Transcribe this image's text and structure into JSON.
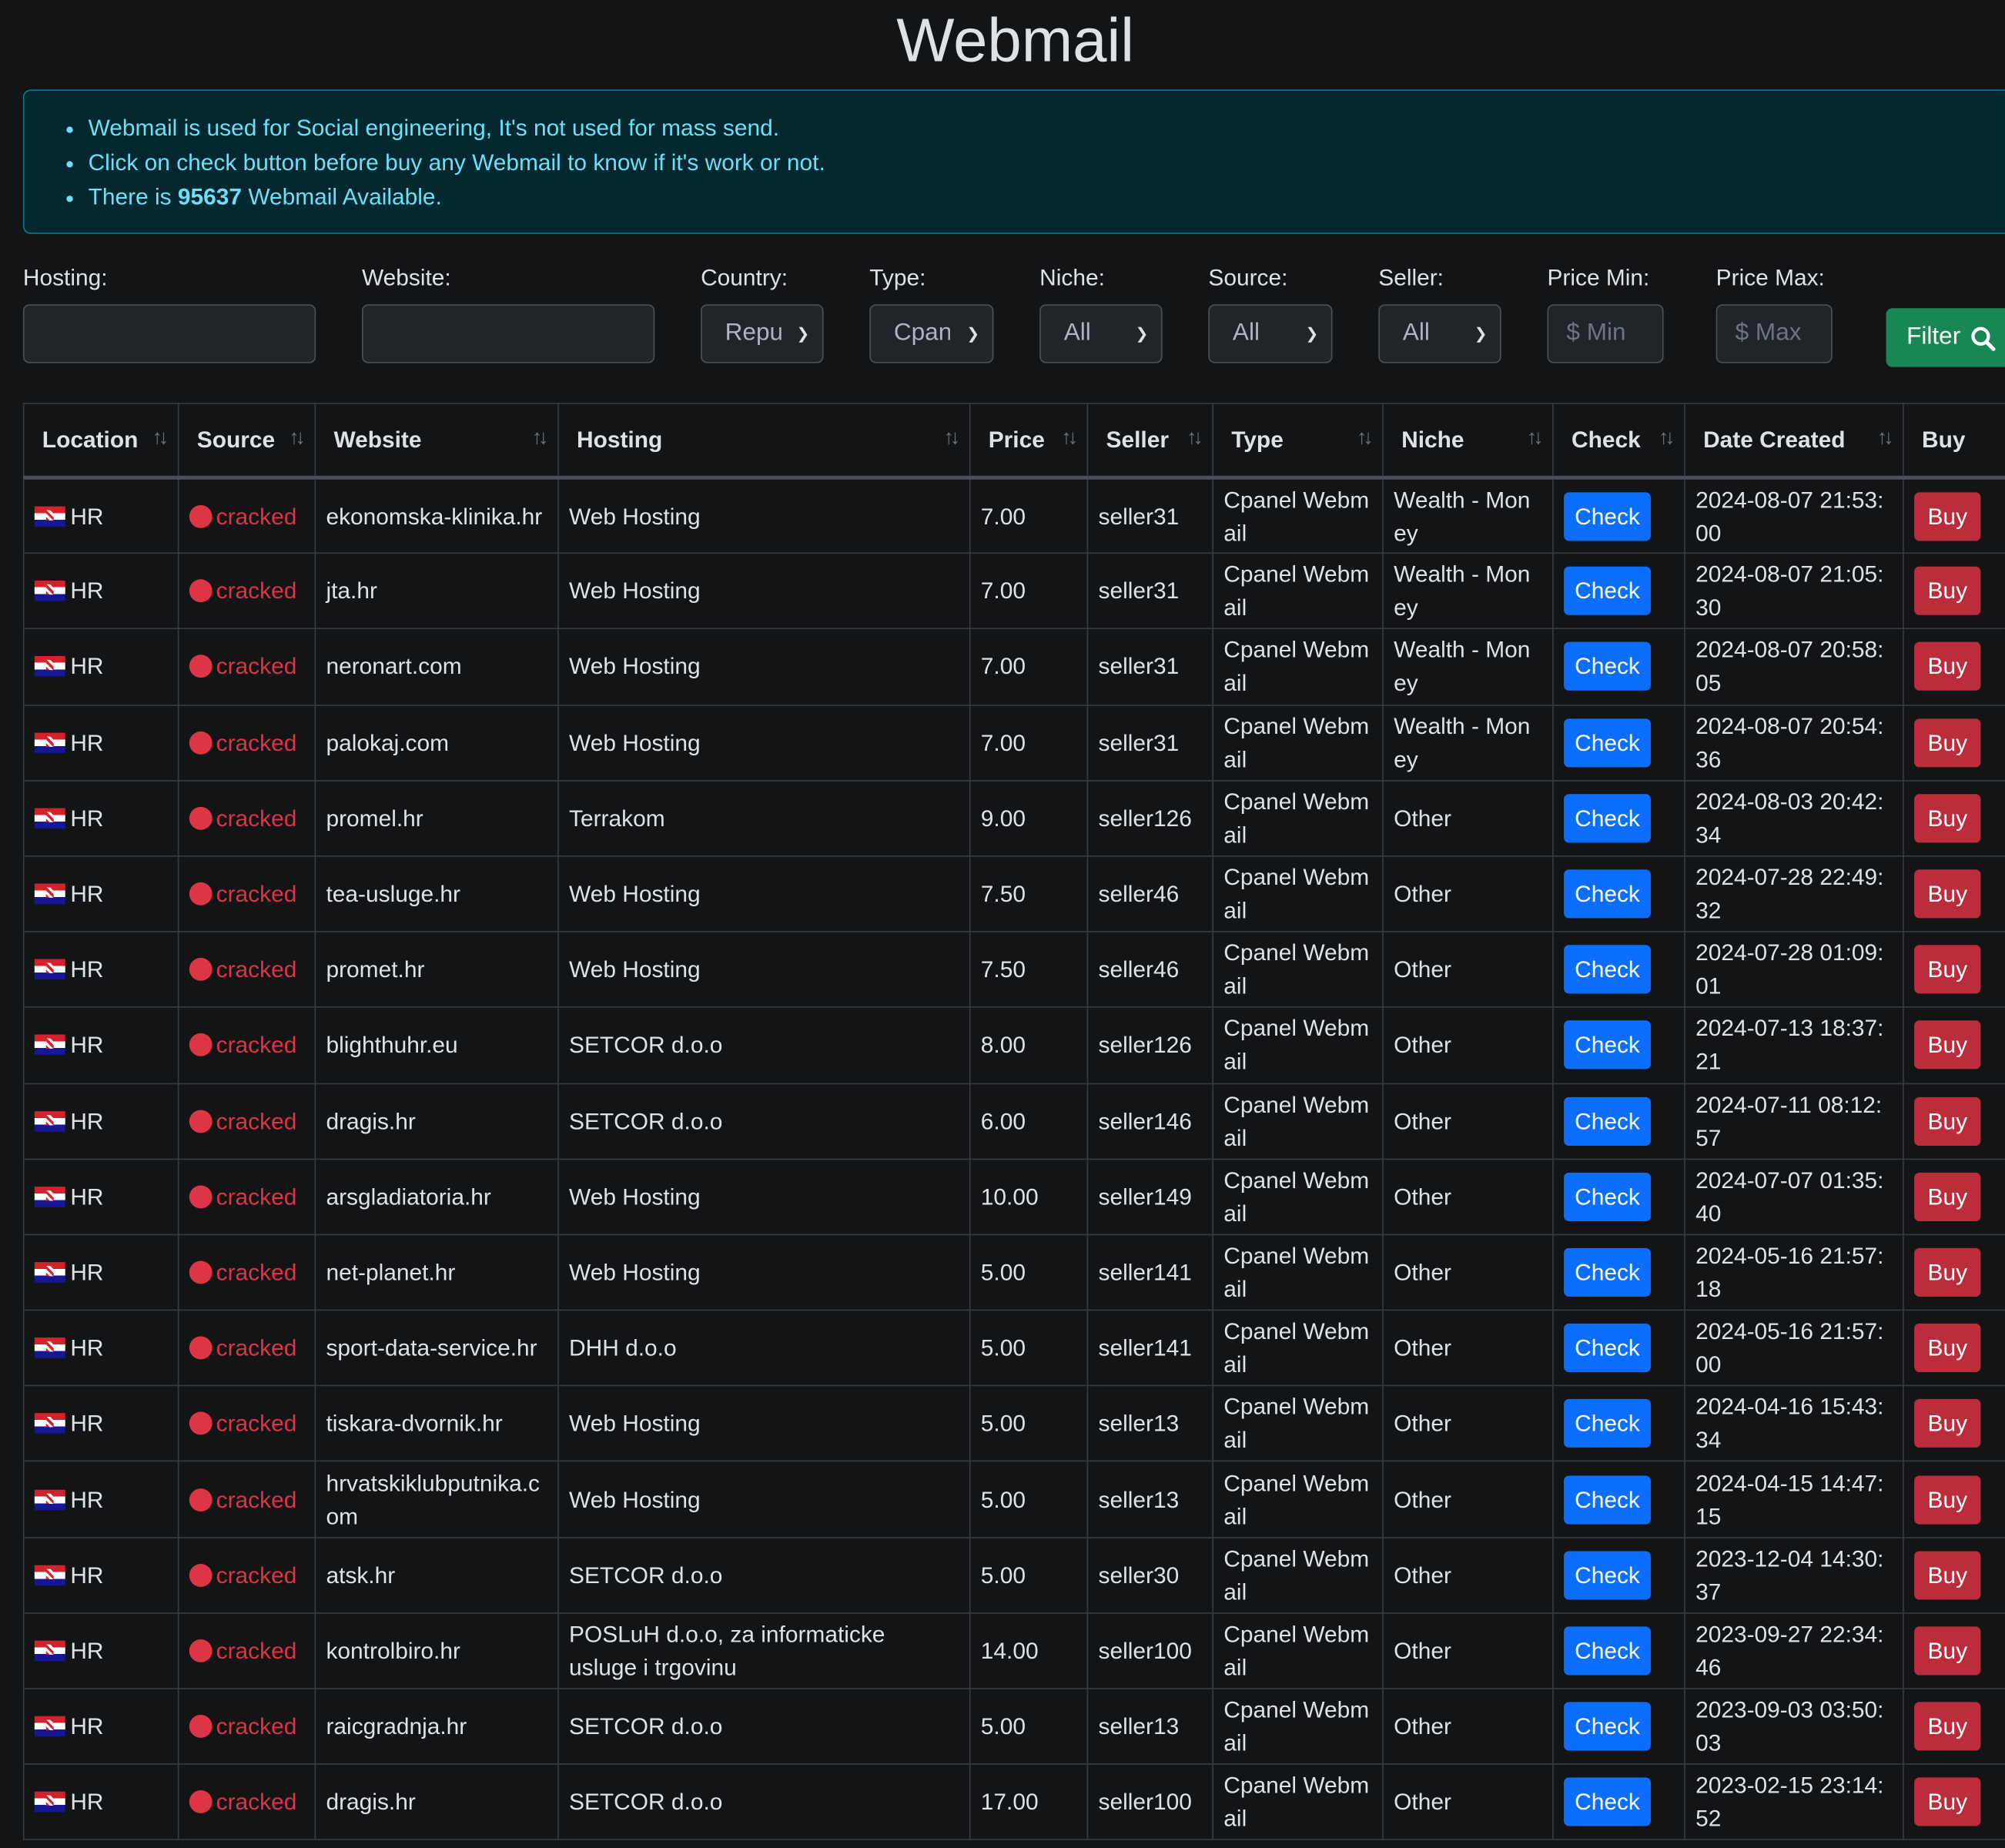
{
  "page": {
    "title": "Webmail"
  },
  "alert": {
    "line1": "Webmail is used for Social engineering, It's not used for mass send.",
    "line2": "Click on check button before buy any Webmail to know if it's work or not.",
    "line3_pre": "There is ",
    "count": "95637",
    "line3_post": " Webmail Available."
  },
  "filters": {
    "hosting_label": "Hosting:",
    "website_label": "Website:",
    "country_label": "Country:",
    "country_value": "Repu",
    "type_label": "Type:",
    "type_value": "Cpan",
    "niche_label": "Niche:",
    "niche_value": "All",
    "source_label": "Source:",
    "source_value": "All",
    "seller_label": "Seller:",
    "seller_value": "All",
    "price_min_label": "Price Min:",
    "price_min_placeholder": "$ Min",
    "price_max_label": "Price Max:",
    "price_max_placeholder": "$ Max",
    "filter_button": "Filter"
  },
  "table": {
    "columns": [
      "Location",
      "Source",
      "Website",
      "Hosting",
      "Price",
      "Seller",
      "Type",
      "Niche",
      "Check",
      "Date Created",
      "Buy"
    ],
    "rows": [
      {
        "loc": "HR",
        "source": "cracked",
        "website": "ekonomska-klinika.hr",
        "hosting": "Web Hosting",
        "price": "7.00",
        "seller": "seller31",
        "type": "Cpanel Webmail",
        "niche": "Wealth - Money",
        "check": "Check",
        "date": "2024-08-07 21:53:00",
        "buy": "Buy"
      },
      {
        "loc": "HR",
        "source": "cracked",
        "website": "jta.hr",
        "hosting": "Web Hosting",
        "price": "7.00",
        "seller": "seller31",
        "type": "Cpanel Webmail",
        "niche": "Wealth - Money",
        "check": "Check",
        "date": "2024-08-07 21:05:30",
        "buy": "Buy"
      },
      {
        "loc": "HR",
        "source": "cracked",
        "website": "neronart.com",
        "hosting": "Web Hosting",
        "price": "7.00",
        "seller": "seller31",
        "type": "Cpanel Webmail",
        "niche": "Wealth - Money",
        "check": "Check",
        "date": "2024-08-07 20:58:05",
        "buy": "Buy"
      },
      {
        "loc": "HR",
        "source": "cracked",
        "website": "palokaj.com",
        "hosting": "Web Hosting",
        "price": "7.00",
        "seller": "seller31",
        "type": "Cpanel Webmail",
        "niche": "Wealth - Money",
        "check": "Check",
        "date": "2024-08-07 20:54:36",
        "buy": "Buy"
      },
      {
        "loc": "HR",
        "source": "cracked",
        "website": "promel.hr",
        "hosting": "Terrakom",
        "price": "9.00",
        "seller": "seller126",
        "type": "Cpanel Webmail",
        "niche": "Other",
        "check": "Check",
        "date": "2024-08-03 20:42:34",
        "buy": "Buy"
      },
      {
        "loc": "HR",
        "source": "cracked",
        "website": "tea-usluge.hr",
        "hosting": "Web Hosting",
        "price": "7.50",
        "seller": "seller46",
        "type": "Cpanel Webmail",
        "niche": "Other",
        "check": "Check",
        "date": "2024-07-28 22:49:32",
        "buy": "Buy"
      },
      {
        "loc": "HR",
        "source": "cracked",
        "website": "promet.hr",
        "hosting": "Web Hosting",
        "price": "7.50",
        "seller": "seller46",
        "type": "Cpanel Webmail",
        "niche": "Other",
        "check": "Check",
        "date": "2024-07-28 01:09:01",
        "buy": "Buy"
      },
      {
        "loc": "HR",
        "source": "cracked",
        "website": "blighthuhr.eu",
        "hosting": "SETCOR d.o.o",
        "price": "8.00",
        "seller": "seller126",
        "type": "Cpanel Webmail",
        "niche": "Other",
        "check": "Check",
        "date": "2024-07-13 18:37:21",
        "buy": "Buy"
      },
      {
        "loc": "HR",
        "source": "cracked",
        "website": "dragis.hr",
        "hosting": "SETCOR d.o.o",
        "price": "6.00",
        "seller": "seller146",
        "type": "Cpanel Webmail",
        "niche": "Other",
        "check": "Check",
        "date": "2024-07-11 08:12:57",
        "buy": "Buy"
      },
      {
        "loc": "HR",
        "source": "cracked",
        "website": "arsgladiatoria.hr",
        "hosting": "Web Hosting",
        "price": "10.00",
        "seller": "seller149",
        "type": "Cpanel Webmail",
        "niche": "Other",
        "check": "Check",
        "date": "2024-07-07 01:35:40",
        "buy": "Buy"
      },
      {
        "loc": "HR",
        "source": "cracked",
        "website": "net-planet.hr",
        "hosting": "Web Hosting",
        "price": "5.00",
        "seller": "seller141",
        "type": "Cpanel Webmail",
        "niche": "Other",
        "check": "Check",
        "date": "2024-05-16 21:57:18",
        "buy": "Buy"
      },
      {
        "loc": "HR",
        "source": "cracked",
        "website": "sport-data-service.hr",
        "hosting": "DHH d.o.o",
        "price": "5.00",
        "seller": "seller141",
        "type": "Cpanel Webmail",
        "niche": "Other",
        "check": "Check",
        "date": "2024-05-16 21:57:00",
        "buy": "Buy"
      },
      {
        "loc": "HR",
        "source": "cracked",
        "website": "tiskara-dvornik.hr",
        "hosting": "Web Hosting",
        "price": "5.00",
        "seller": "seller13",
        "type": "Cpanel Webmail",
        "niche": "Other",
        "check": "Check",
        "date": "2024-04-16 15:43:34",
        "buy": "Buy"
      },
      {
        "loc": "HR",
        "source": "cracked",
        "website": "hrvatskiklubputnika.com",
        "hosting": "Web Hosting",
        "price": "5.00",
        "seller": "seller13",
        "type": "Cpanel Webmail",
        "niche": "Other",
        "check": "Check",
        "date": "2024-04-15 14:47:15",
        "buy": "Buy"
      },
      {
        "loc": "HR",
        "source": "cracked",
        "website": "atsk.hr",
        "hosting": "SETCOR d.o.o",
        "price": "5.00",
        "seller": "seller30",
        "type": "Cpanel Webmail",
        "niche": "Other",
        "check": "Check",
        "date": "2023-12-04 14:30:37",
        "buy": "Buy"
      },
      {
        "loc": "HR",
        "source": "cracked",
        "website": "kontrolbiro.hr",
        "hosting": "POSLuH d.o.o, za informaticke usluge i trgovinu",
        "price": "14.00",
        "seller": "seller100",
        "type": "Cpanel Webmail",
        "niche": "Other",
        "check": "Check",
        "date": "2023-09-27 22:34:46",
        "buy": "Buy"
      },
      {
        "loc": "HR",
        "source": "cracked",
        "website": "raicgradnja.hr",
        "hosting": "SETCOR d.o.o",
        "price": "5.00",
        "seller": "seller13",
        "type": "Cpanel Webmail",
        "niche": "Other",
        "check": "Check",
        "date": "2023-09-03 03:50:03",
        "buy": "Buy"
      },
      {
        "loc": "HR",
        "source": "cracked",
        "website": "dragis.hr",
        "hosting": "SETCOR d.o.o",
        "price": "17.00",
        "seller": "seller100",
        "type": "Cpanel Webmail",
        "niche": "Other",
        "check": "Check",
        "date": "2023-02-15 23:14:52",
        "buy": "Buy"
      }
    ]
  }
}
